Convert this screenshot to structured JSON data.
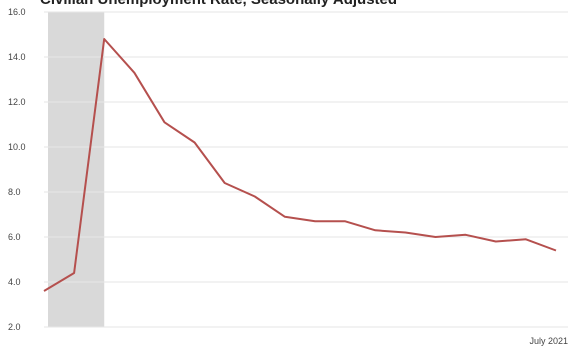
{
  "chart_data": {
    "type": "line",
    "title": "Civilian Unemployment Rate, Seasonally Adjusted",
    "xlabel": "",
    "ylabel": "",
    "ylim": [
      2.0,
      16.0
    ],
    "y_ticks": [
      "2.0",
      "4.0",
      "6.0",
      "8.0",
      "10.0",
      "12.0",
      "14.0",
      "16.0"
    ],
    "x_tick_labels": [
      {
        "label": "July 2021",
        "index": 17
      }
    ],
    "grid": true,
    "shaded_region": {
      "from_index": 0,
      "to_index": 2,
      "color": "#d9d9d9"
    },
    "series": [
      {
        "color": "#b5504e",
        "values": [
          3.6,
          4.4,
          14.8,
          13.3,
          11.1,
          10.2,
          8.4,
          7.8,
          6.9,
          6.7,
          6.7,
          6.3,
          6.2,
          6.0,
          6.1,
          5.8,
          5.9,
          5.4
        ]
      }
    ]
  }
}
